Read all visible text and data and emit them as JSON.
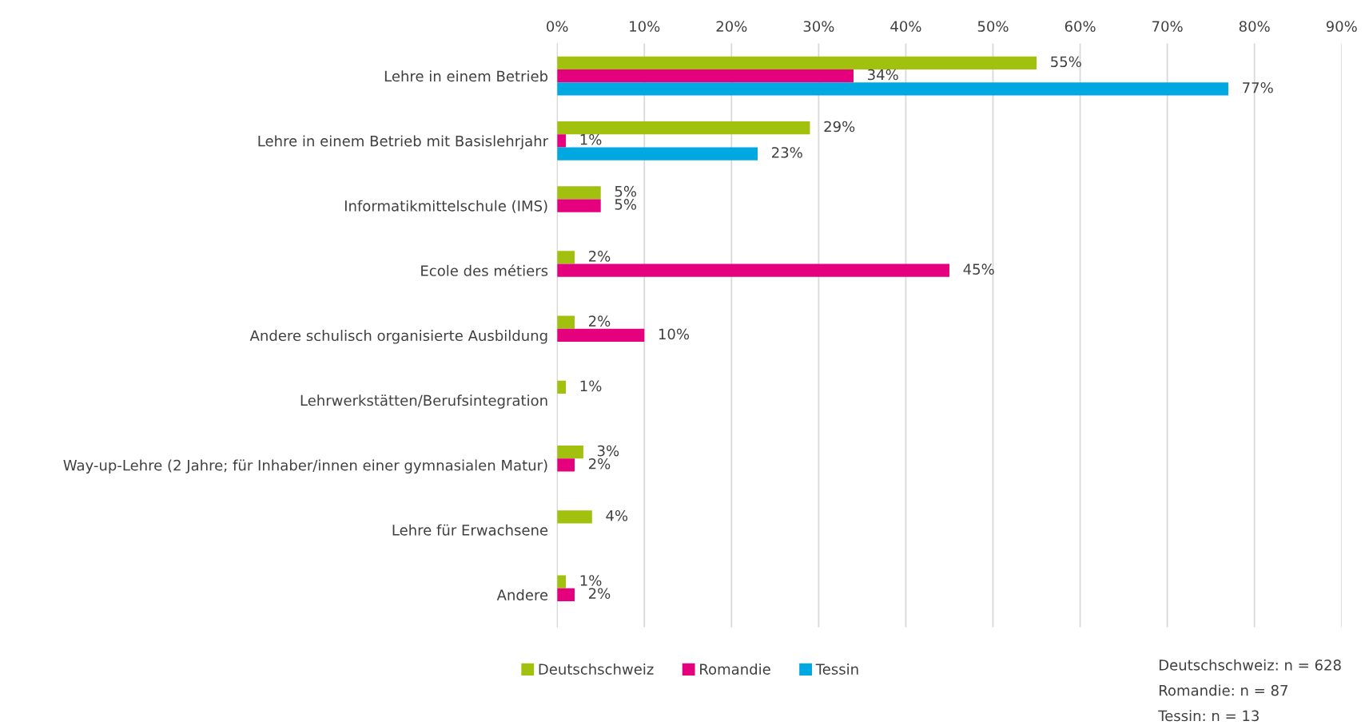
{
  "chart_data": {
    "type": "bar",
    "orientation": "horizontal",
    "categories": [
      "Lehre in einem Betrieb",
      "Lehre in einem Betrieb mit Basislehrjahr",
      "Informatikmittelschule (IMS)",
      "Ecole des métiers",
      "Andere schulisch organisierte Ausbildung",
      "Lehrwerkstätten/Berufsintegration",
      "Way-up-Lehre (2 Jahre; für Inhaber/innen einer gymnasialen Matur)",
      "Lehre für Erwachsene",
      "Andere"
    ],
    "series": [
      {
        "name": "Deutschschweiz",
        "color": "#a2c10f",
        "values": [
          55,
          29,
          5,
          2,
          2,
          1,
          3,
          4,
          1
        ],
        "value_labels": [
          "55%",
          "29%",
          "5%",
          "2%",
          "2%",
          "1%",
          "3%",
          "4%",
          "1%"
        ]
      },
      {
        "name": "Romandie",
        "color": "#e5007d",
        "values": [
          34,
          1,
          5,
          45,
          10,
          null,
          2,
          null,
          2
        ],
        "value_labels": [
          "34%",
          "1%",
          "5%",
          "45%",
          "10%",
          null,
          "2%",
          null,
          "2%"
        ]
      },
      {
        "name": "Tessin",
        "color": "#00a8e1",
        "values": [
          77,
          23,
          null,
          null,
          null,
          null,
          null,
          null,
          null
        ],
        "value_labels": [
          "77%",
          "23%",
          null,
          null,
          null,
          null,
          null,
          null,
          null
        ]
      }
    ],
    "xlim": [
      0,
      90
    ],
    "xticks": [
      {
        "value": 0,
        "label": "0%"
      },
      {
        "value": 10,
        "label": "10%"
      },
      {
        "value": 20,
        "label": "20%"
      },
      {
        "value": 30,
        "label": "30%"
      },
      {
        "value": 40,
        "label": "40%"
      },
      {
        "value": 50,
        "label": "50%"
      },
      {
        "value": 60,
        "label": "60%"
      },
      {
        "value": 70,
        "label": "70%"
      },
      {
        "value": 80,
        "label": "80%"
      },
      {
        "value": 90,
        "label": "90%"
      }
    ],
    "grid": "x",
    "legend": "bottom",
    "annotations": [
      "Deutschschweiz: n = 628",
      "Romandie: n = 87",
      "Tessin: n = 13"
    ]
  }
}
